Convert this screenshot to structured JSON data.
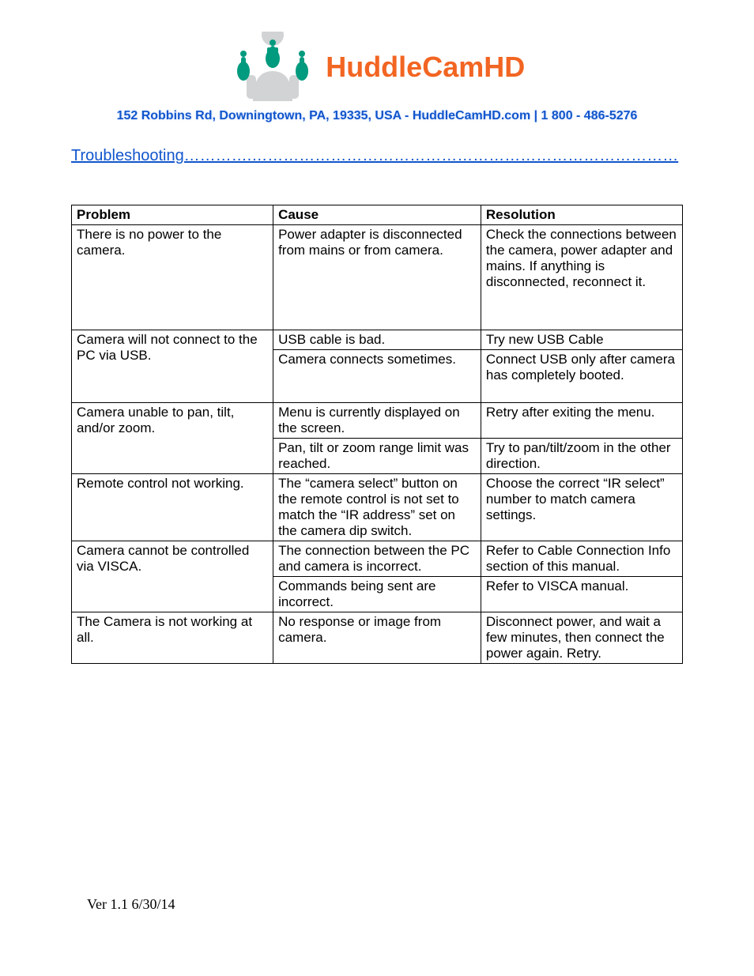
{
  "brand": {
    "name": "HuddleCamHD",
    "color": "#f26522"
  },
  "logo": {
    "person_fill": "#d1d3d4",
    "dot_green": "#009a7e",
    "accent_green": "#009a7e"
  },
  "address": "152 Robbins Rd, Downingtown, PA, 19335, USA - HuddleCamHD.com | 1 800 - 486-5276",
  "section_title": "Troubleshooting………….………………………………………………………………………",
  "table": {
    "headers": [
      "Problem",
      "Cause",
      "Resolution"
    ],
    "groups": [
      {
        "problem": "There is no power to the camera.",
        "rows": [
          {
            "cause": "Power adapter is disconnected from mains or from camera.",
            "resolution": "Check the connections between the camera, power adapter and mains. If anything is disconnected, reconnect it.",
            "extra_pad": true
          }
        ]
      },
      {
        "problem": "Camera will not connect to the PC via USB.",
        "rows": [
          {
            "cause": "USB cable is bad.",
            "resolution": "Try new USB Cable"
          },
          {
            "cause": "Camera connects sometimes.",
            "resolution": "Connect USB only after camera has completely booted.",
            "extra_pad_small": true
          }
        ]
      },
      {
        "problem": "Camera unable to pan, tilt, and/or zoom.",
        "rows": [
          {
            "cause": "Menu is currently displayed on the screen.",
            "resolution": "Retry after exiting the menu."
          },
          {
            "cause": "Pan, tilt or zoom range limit was reached.",
            "resolution": "Try to pan/tilt/zoom in the other direction."
          }
        ]
      },
      {
        "problem": "Remote control not working.",
        "rows": [
          {
            "cause": "The “camera select” button on the remote control is not set to match the “IR address” set on the camera dip switch.",
            "resolution": "Choose the correct “IR select” number to match camera settings."
          }
        ]
      },
      {
        "problem": "Camera cannot be controlled via VISCA.",
        "rows": [
          {
            "cause": "The connection between the PC and camera is incorrect.",
            "resolution": "Refer to Cable Connection Info section of this manual."
          },
          {
            "cause": "Commands being sent are incorrect.",
            "resolution": "Refer to VISCA manual."
          }
        ]
      },
      {
        "problem": "The Camera is not working at all.",
        "rows": [
          {
            "cause": "No response or image from camera.",
            "resolution": "Disconnect power, and wait a few minutes, then connect the power again. Retry."
          }
        ]
      }
    ]
  },
  "footer": "Ver 1.1 6/30/14",
  "colors": {
    "link_blue": "#1155cc",
    "text_black": "#000000",
    "border": "#000000",
    "background": "#ffffff"
  },
  "fontsizes": {
    "brand": 36,
    "address": 16,
    "section": 20,
    "table": 17,
    "footer": 18
  }
}
